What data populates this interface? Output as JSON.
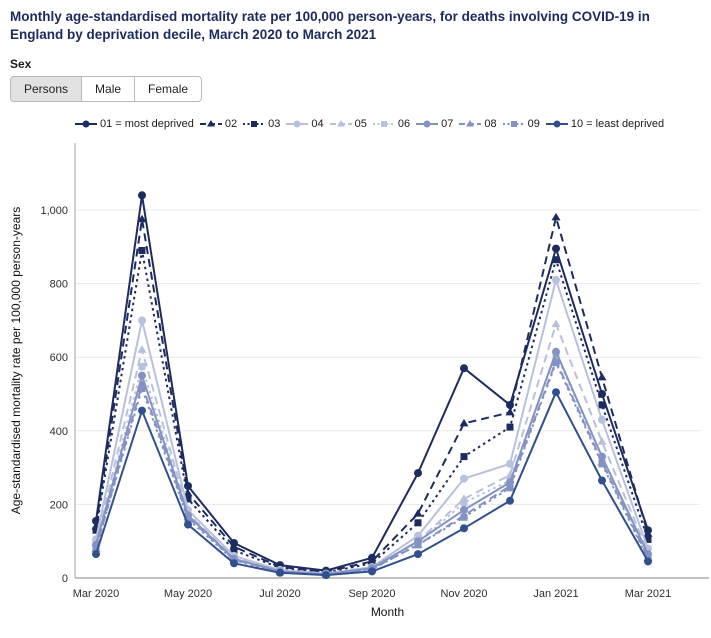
{
  "page": {
    "title": "Monthly age-standardised mortality rate per 100,000 person-years, for deaths involving COVID-19 in England by deprivation decile, March 2020 to March 2021"
  },
  "sex_selector": {
    "label": "Sex",
    "options": [
      {
        "label": "Persons",
        "selected": true
      },
      {
        "label": "Male",
        "selected": false
      },
      {
        "label": "Female",
        "selected": false
      }
    ]
  },
  "chart_data": {
    "type": "line",
    "title": "Monthly age-standardised mortality rate per 100,000 person-years, for deaths involving COVID-19 in England by deprivation decile, March 2020 to March 2021",
    "xlabel": "Month",
    "ylabel": "Age-standardised mortality rate per 100,000 person-years",
    "x": [
      "Mar 2020",
      "Apr 2020",
      "May 2020",
      "Jun 2020",
      "Jul 2020",
      "Aug 2020",
      "Sep 2020",
      "Oct 2020",
      "Nov 2020",
      "Dec 2020",
      "Jan 2021",
      "Feb 2021",
      "Mar 2021"
    ],
    "x_ticks_shown": [
      "Mar 2020",
      "May 2020",
      "Jul 2020",
      "Sep 2020",
      "Nov 2020",
      "Jan 2021",
      "Mar 2021"
    ],
    "yticks": [
      {
        "value": 0,
        "label": "0"
      },
      {
        "value": 200,
        "label": "200"
      },
      {
        "value": 400,
        "label": "400"
      },
      {
        "value": 600,
        "label": "600"
      },
      {
        "value": 800,
        "label": "800"
      },
      {
        "value": 1000,
        "label": "1,000"
      }
    ],
    "ylim": [
      0,
      1155
    ],
    "grid": true,
    "legend_position": "top",
    "colors": {
      "deciles_01_03": "#1d2b5f",
      "deciles_04_06": "#b7c0dc",
      "deciles_07_09": "#8392c3",
      "decile_10": "#32508e"
    },
    "series": [
      {
        "name": "01 = most deprived",
        "color": "#1d2b5f",
        "line": "solid",
        "marker": "circle",
        "values": [
          155,
          1040,
          250,
          95,
          35,
          20,
          55,
          285,
          570,
          470,
          895,
          500,
          130
        ]
      },
      {
        "name": "02",
        "color": "#1d2b5f",
        "line": "dashed",
        "marker": "triangle",
        "values": [
          140,
          975,
          230,
          85,
          30,
          17,
          45,
          175,
          420,
          450,
          980,
          545,
          120
        ]
      },
      {
        "name": "03",
        "color": "#1d2b5f",
        "line": "dotted",
        "marker": "square",
        "values": [
          130,
          890,
          215,
          75,
          28,
          15,
          40,
          150,
          330,
          410,
          865,
          470,
          105
        ]
      },
      {
        "name": "04",
        "color": "#b7c0dc",
        "line": "solid",
        "marker": "circle",
        "values": [
          105,
          700,
          185,
          60,
          22,
          12,
          30,
          115,
          270,
          310,
          810,
          430,
          80
        ]
      },
      {
        "name": "05",
        "color": "#b7c0dc",
        "line": "dashed",
        "marker": "triangle",
        "values": [
          95,
          620,
          175,
          55,
          20,
          11,
          28,
          100,
          215,
          280,
          690,
          370,
          70
        ]
      },
      {
        "name": "06",
        "color": "#b7c0dc",
        "line": "dotted",
        "marker": "square",
        "values": [
          90,
          575,
          170,
          52,
          18,
          10,
          26,
          95,
          205,
          265,
          610,
          325,
          60
        ]
      },
      {
        "name": "07",
        "color": "#8392c3",
        "line": "solid",
        "marker": "circle",
        "values": [
          90,
          550,
          170,
          52,
          18,
          10,
          27,
          100,
          185,
          260,
          615,
          330,
          65
        ]
      },
      {
        "name": "08",
        "color": "#8392c3",
        "line": "dashed",
        "marker": "triangle",
        "values": [
          80,
          525,
          165,
          50,
          17,
          9,
          25,
          90,
          170,
          250,
          590,
          315,
          55
        ]
      },
      {
        "name": "09",
        "color": "#8392c3",
        "line": "dotted",
        "marker": "square",
        "values": [
          80,
          515,
          160,
          48,
          16,
          9,
          24,
          90,
          165,
          245,
          585,
          310,
          50
        ]
      },
      {
        "name": "10 = least deprived",
        "color": "#32508e",
        "line": "solid",
        "marker": "circle",
        "values": [
          65,
          455,
          145,
          40,
          14,
          8,
          18,
          65,
          135,
          210,
          505,
          265,
          45
        ]
      }
    ]
  }
}
